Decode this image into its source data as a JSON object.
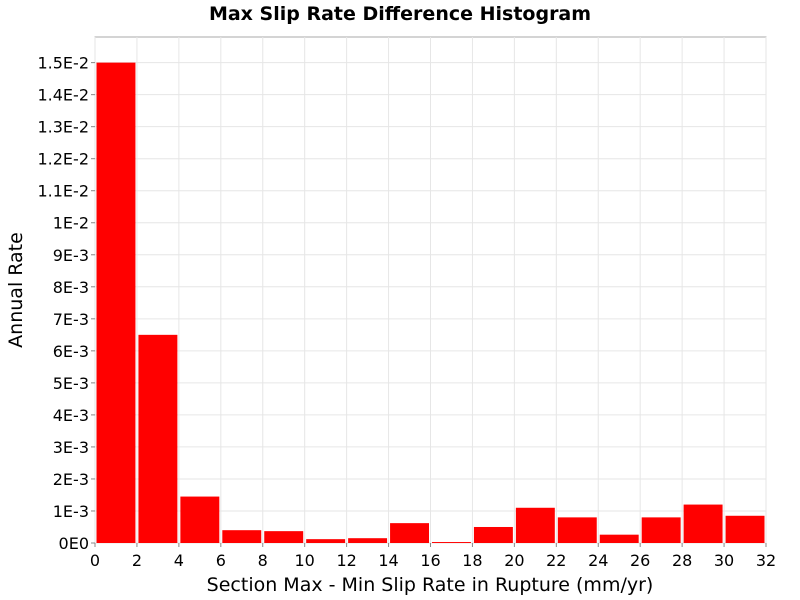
{
  "chart_data": {
    "type": "bar",
    "title": "Max Slip Rate Difference Histogram",
    "xlabel": "Section Max - Min Slip Rate in Rupture (mm/yr)",
    "ylabel": "Annual Rate",
    "xlim": [
      0,
      32
    ],
    "ylim": [
      0,
      0.0158
    ],
    "x_ticks": [
      "0",
      "2",
      "4",
      "6",
      "8",
      "10",
      "12",
      "14",
      "16",
      "18",
      "20",
      "22",
      "24",
      "26",
      "28",
      "30",
      "32"
    ],
    "y_ticks": [
      "0E0",
      "1E-3",
      "2E-3",
      "3E-3",
      "4E-3",
      "5E-3",
      "6E-3",
      "7E-3",
      "8E-3",
      "9E-3",
      "1E-2",
      "1.1E-2",
      "1.2E-2",
      "1.3E-2",
      "1.4E-2",
      "1.5E-2"
    ],
    "bin_width": 2,
    "x": [
      1,
      3,
      5,
      7,
      9,
      11,
      13,
      15,
      17,
      19,
      21,
      23,
      25,
      27,
      29,
      31
    ],
    "values": [
      0.015,
      0.0065,
      0.00145,
      0.0004,
      0.00037,
      0.00012,
      0.00015,
      0.00062,
      3e-05,
      0.0005,
      0.0011,
      0.0008,
      0.00026,
      0.0008,
      0.0012,
      0.00085
    ],
    "bar_color": "#ff0000",
    "grid": true
  }
}
